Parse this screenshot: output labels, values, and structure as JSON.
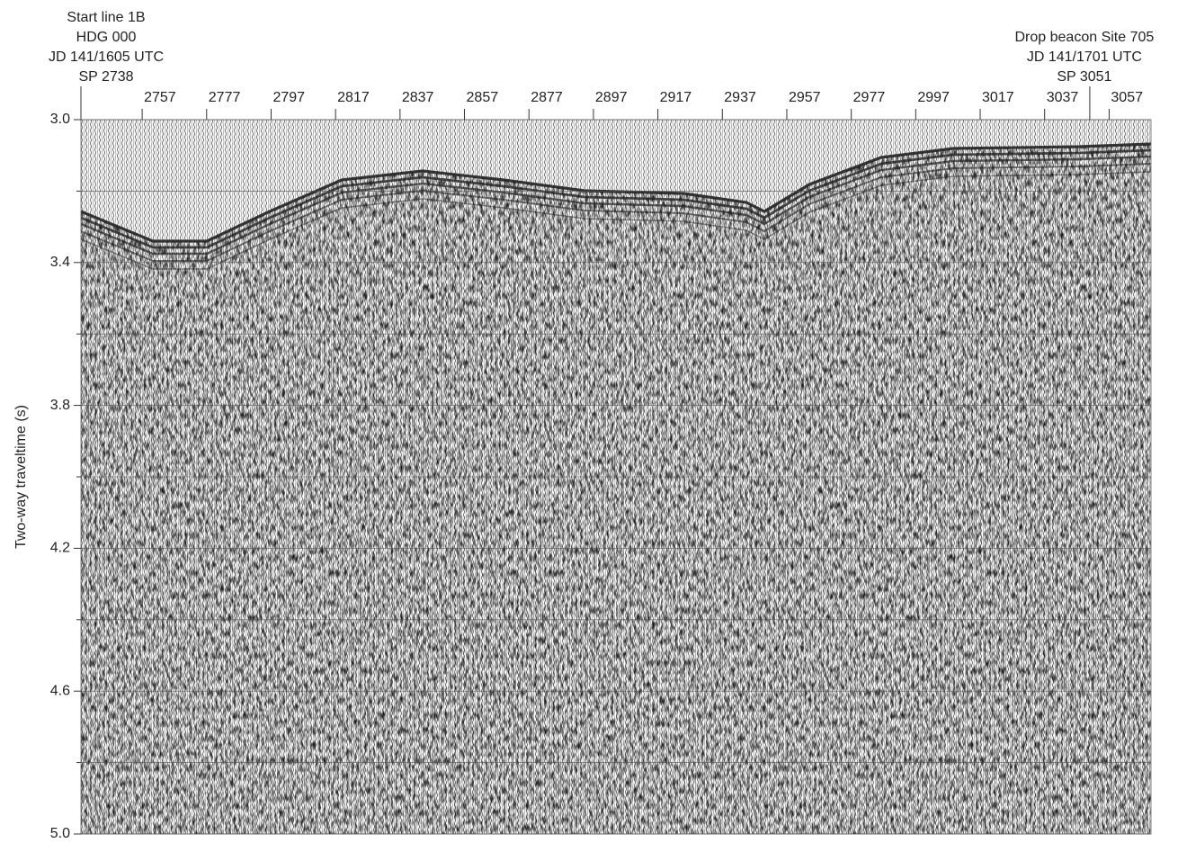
{
  "chart_data": {
    "type": "seismic",
    "ylabel": "Two-way traveltime (s)",
    "ylim": [
      3.0,
      5.0
    ],
    "yticks": [
      {
        "value": 3,
        "label": "3.0"
      },
      3.4,
      3.8,
      4.2,
      4.6,
      {
        "value": 5,
        "label": "5.0"
      }
    ],
    "minor_yticks": [
      3.2,
      3.6,
      4,
      4.4,
      4.8
    ],
    "xlim": [
      2738,
      3070
    ],
    "xticks": [
      2757,
      2777,
      2797,
      2817,
      2837,
      2857,
      2877,
      2897,
      2917,
      2937,
      2957,
      2977,
      2997,
      3017,
      3037,
      3057
    ],
    "annotations": [
      {
        "x": 2738,
        "lines": [
          "Start line 1B",
          "HDG 000",
          "JD 141/1605 UTC",
          "SP 2738"
        ]
      },
      {
        "x": 3051,
        "lines": [
          "Drop beacon Site 705",
          "JD 141/1701 UTC",
          "SP 3051"
        ]
      }
    ]
  }
}
